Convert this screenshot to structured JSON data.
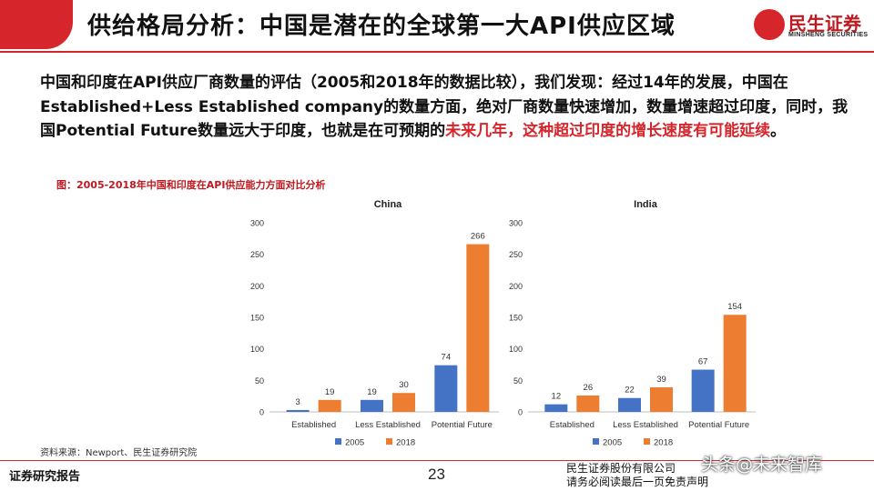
{
  "header": {
    "title": "供给格局分析：中国是潜在的全球第一大API供应区域",
    "logo_cn": "民生证券",
    "logo_en": "MINSHENG SECURITIES",
    "accent_color": "#d6262c"
  },
  "paragraph": {
    "part1": "中国和印度在API供应厂商数量的评估（2005和2018年的数据比较），我们发现：经过14年的发展，中国在Established+Less Established company的数量方面，绝对厂商数量快速增加，数量增速超过印度，同时，我国Potential Future数量远大于印度，也就是在可预期的",
    "highlight": "未来几年，这种超过印度的增长速度有可能延续",
    "part2": "。"
  },
  "figure": {
    "caption": "图：2005-2018年中国和印度在API供应能力方面对比分析"
  },
  "chart_data": [
    {
      "type": "bar",
      "title": "China",
      "categories": [
        "Established",
        "Less Established",
        "Potential Future"
      ],
      "series": [
        {
          "name": "2005",
          "values": [
            3,
            19,
            74
          ],
          "color": "#4472c4"
        },
        {
          "name": "2018",
          "values": [
            19,
            30,
            266
          ],
          "color": "#ed7d31"
        }
      ],
      "ylim": [
        0,
        300
      ],
      "yticks": [
        0,
        50,
        100,
        150,
        200,
        250,
        300
      ],
      "grid": false
    },
    {
      "type": "bar",
      "title": "India",
      "categories": [
        "Established",
        "Less Established",
        "Potential Future"
      ],
      "series": [
        {
          "name": "2005",
          "values": [
            12,
            22,
            67
          ],
          "color": "#4472c4"
        },
        {
          "name": "2018",
          "values": [
            26,
            39,
            154
          ],
          "color": "#ed7d31"
        }
      ],
      "ylim": [
        0,
        300
      ],
      "yticks": [
        0,
        50,
        100,
        150,
        200,
        250,
        300
      ],
      "grid": false
    }
  ],
  "legend": {
    "placement": "bottom",
    "items": [
      {
        "label": "2005",
        "color": "#4472c4"
      },
      {
        "label": "2018",
        "color": "#ed7d31"
      }
    ]
  },
  "source": "资料来源：Newport、民生证券研究院",
  "footer": {
    "left": "证券研究报告",
    "page": "23",
    "right_line1": "民生证券股份有限公司",
    "right_line2": "请务必阅读最后一页免责声明",
    "watermark": "头条@未来智库"
  }
}
